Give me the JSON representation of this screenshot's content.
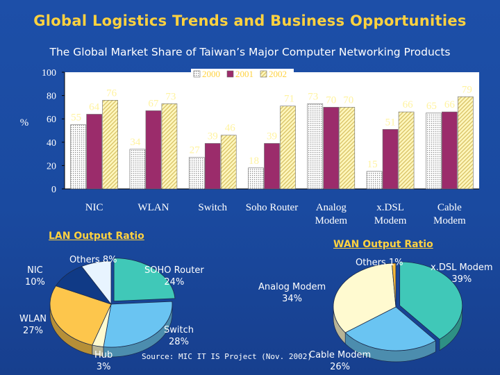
{
  "slide": {
    "title": "Global Logistics Trends and Business Opportunities",
    "subtitle": "The Global Market Share of Taiwan’s Major Computer Networking Products",
    "source": "Source: MIC IT IS Project (Nov. 2002)"
  },
  "chart_data": [
    {
      "type": "bar",
      "ylabel": "%",
      "ylim": [
        0,
        100
      ],
      "yticks": [
        0,
        20,
        40,
        60,
        80,
        100
      ],
      "grid": false,
      "legend": "top-center",
      "categories": [
        [
          "NIC"
        ],
        [
          "WLAN"
        ],
        [
          "Switch"
        ],
        [
          "Soho Router"
        ],
        [
          "Analog",
          "Modem"
        ],
        [
          "x.DSL",
          "Modem"
        ],
        [
          "Cable",
          "Modem"
        ]
      ],
      "series": [
        {
          "name": "2000",
          "values": [
            55,
            34,
            27,
            18,
            73,
            15,
            65
          ],
          "color": "#ffffff",
          "pattern": "dots"
        },
        {
          "name": "2001",
          "values": [
            64,
            67,
            39,
            39,
            70,
            51,
            66
          ],
          "color": "#9b2c6b"
        },
        {
          "name": "2002",
          "values": [
            76,
            73,
            46,
            71,
            70,
            66,
            79
          ],
          "color": "#fff5b0",
          "pattern": "hatch"
        }
      ]
    },
    {
      "type": "pie",
      "title": "LAN Output Ratio",
      "slices": [
        {
          "name": "SOHO Router",
          "value": 24,
          "label": "24%",
          "color": "#40c8b8"
        },
        {
          "name": "Switch",
          "value": 28,
          "label": "28%",
          "color": "#6ac4f2"
        },
        {
          "name": "Hub",
          "value": 3,
          "label": "3%",
          "color": "#fffad0"
        },
        {
          "name": "WLAN",
          "value": 27,
          "label": "27%",
          "color": "#fdc64c"
        },
        {
          "name": "NIC",
          "value": 10,
          "label": "10%",
          "color": "#103a86"
        },
        {
          "name": "Others",
          "value": 8,
          "label": "8%",
          "color": "#e8f4ff"
        }
      ]
    },
    {
      "type": "pie",
      "title": "WAN Output Ratio",
      "slices": [
        {
          "name": "x.DSL Modem",
          "value": 39,
          "label": "39%",
          "color": "#40c8b8"
        },
        {
          "name": "Cable Modem",
          "value": 26,
          "label": "26%",
          "color": "#6ac4f2"
        },
        {
          "name": "Analog Modem",
          "value": 34,
          "label": "34%",
          "color": "#fffad0"
        },
        {
          "name": "Others",
          "value": 1,
          "label": "1%",
          "color": "#f6b838"
        }
      ]
    }
  ],
  "lan_labels": {
    "soho": "SOHO Router\n24%",
    "switch": "Switch\n28%",
    "hub": "Hub\n3%",
    "wlan": "WLAN\n27%",
    "nic": "NIC\n10%",
    "others": "Others 8%"
  },
  "wan_labels": {
    "xdsl": "x.DSL Modem\n39%",
    "cable": "Cable Modem\n26%",
    "analog": "Analog Modem\n34%",
    "others": "Others 1%"
  }
}
